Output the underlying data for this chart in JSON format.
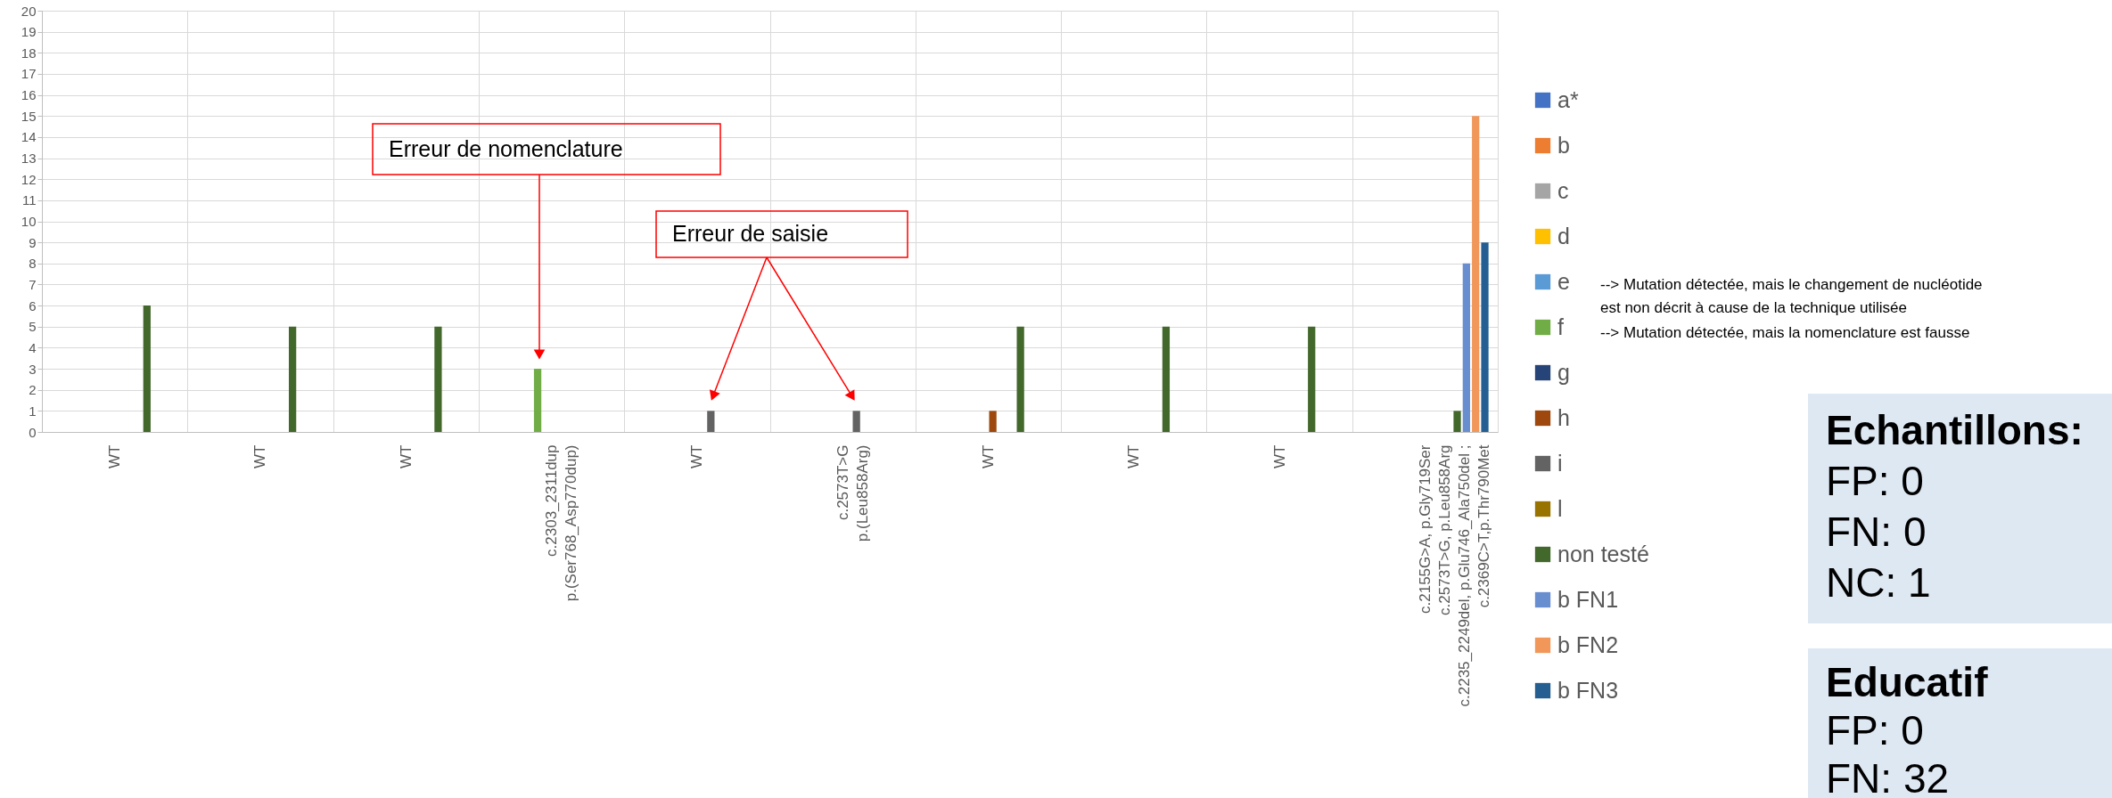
{
  "chart_data": {
    "type": "bar",
    "categories": [
      "WT",
      "WT",
      "WT",
      "c.2303_2311dup\np.(Ser768_Asp770dup)",
      "WT",
      "c.2573T>G\np.(Leu858Arg)",
      "WT",
      "WT",
      "WT",
      "c.2155G>A, p.Gly719Ser\nc.2573T>G, p.Leu858Arg\nc.2235_2249del, p.Glu746_Ala750del ;\nc.2369C>T,p.Thr790Met"
    ],
    "series": [
      {
        "name": "a*",
        "color": "#4472c4",
        "values": [
          null,
          null,
          null,
          null,
          null,
          null,
          null,
          null,
          null,
          null
        ]
      },
      {
        "name": "b",
        "color": "#ed7d31",
        "values": [
          null,
          null,
          null,
          null,
          null,
          null,
          null,
          null,
          null,
          null
        ]
      },
      {
        "name": "c",
        "color": "#a5a5a5",
        "values": [
          null,
          null,
          null,
          null,
          null,
          null,
          null,
          null,
          null,
          null
        ]
      },
      {
        "name": "d",
        "color": "#ffc000",
        "values": [
          null,
          null,
          null,
          null,
          null,
          null,
          null,
          null,
          null,
          null
        ]
      },
      {
        "name": "e",
        "color": "#5b9bd5",
        "values": [
          null,
          null,
          null,
          null,
          null,
          null,
          null,
          null,
          null,
          null
        ]
      },
      {
        "name": "f",
        "color": "#70ad47",
        "values": [
          null,
          null,
          null,
          3,
          null,
          null,
          null,
          null,
          null,
          null
        ]
      },
      {
        "name": "g",
        "color": "#264478",
        "values": [
          null,
          null,
          null,
          null,
          null,
          null,
          null,
          null,
          null,
          null
        ]
      },
      {
        "name": "h",
        "color": "#9e480e",
        "values": [
          null,
          null,
          null,
          null,
          null,
          null,
          1,
          null,
          null,
          null
        ]
      },
      {
        "name": "i",
        "color": "#636363",
        "values": [
          null,
          null,
          null,
          null,
          1,
          1,
          null,
          null,
          null,
          null
        ]
      },
      {
        "name": "l",
        "color": "#997300",
        "values": [
          null,
          null,
          null,
          null,
          null,
          null,
          null,
          null,
          null,
          null
        ]
      },
      {
        "name": "non testé",
        "color": "#43682b",
        "values": [
          6,
          5,
          5,
          null,
          null,
          null,
          5,
          5,
          5,
          1
        ]
      },
      {
        "name": "b FN1",
        "color": "#698ed0",
        "values": [
          null,
          null,
          null,
          null,
          null,
          null,
          null,
          null,
          null,
          8
        ]
      },
      {
        "name": "b FN2",
        "color": "#f1975a",
        "values": [
          null,
          null,
          null,
          null,
          null,
          null,
          null,
          null,
          null,
          15
        ]
      },
      {
        "name": "b FN3",
        "color": "#255e91",
        "values": [
          null,
          null,
          null,
          null,
          null,
          null,
          null,
          null,
          null,
          9
        ]
      }
    ],
    "ylim": [
      0,
      20
    ],
    "yticks": [
      0,
      1,
      2,
      3,
      4,
      5,
      6,
      7,
      8,
      9,
      10,
      11,
      12,
      13,
      14,
      15,
      16,
      17,
      18,
      19,
      20
    ],
    "grid": true,
    "legend": "right",
    "annotations": [
      "Erreur de nomenclature",
      "Erreur de saisie",
      "--> Mutation détectée, mais le changement de nucléotide\nest non décrit à cause de la technique utilisée",
      "--> Mutation détectée, mais la nomenclature est fausse",
      "Echantillons:\nFP: 0\nFN: 0\nNC: 1",
      "Educatif\nFP: 0\nFN: 32"
    ]
  }
}
